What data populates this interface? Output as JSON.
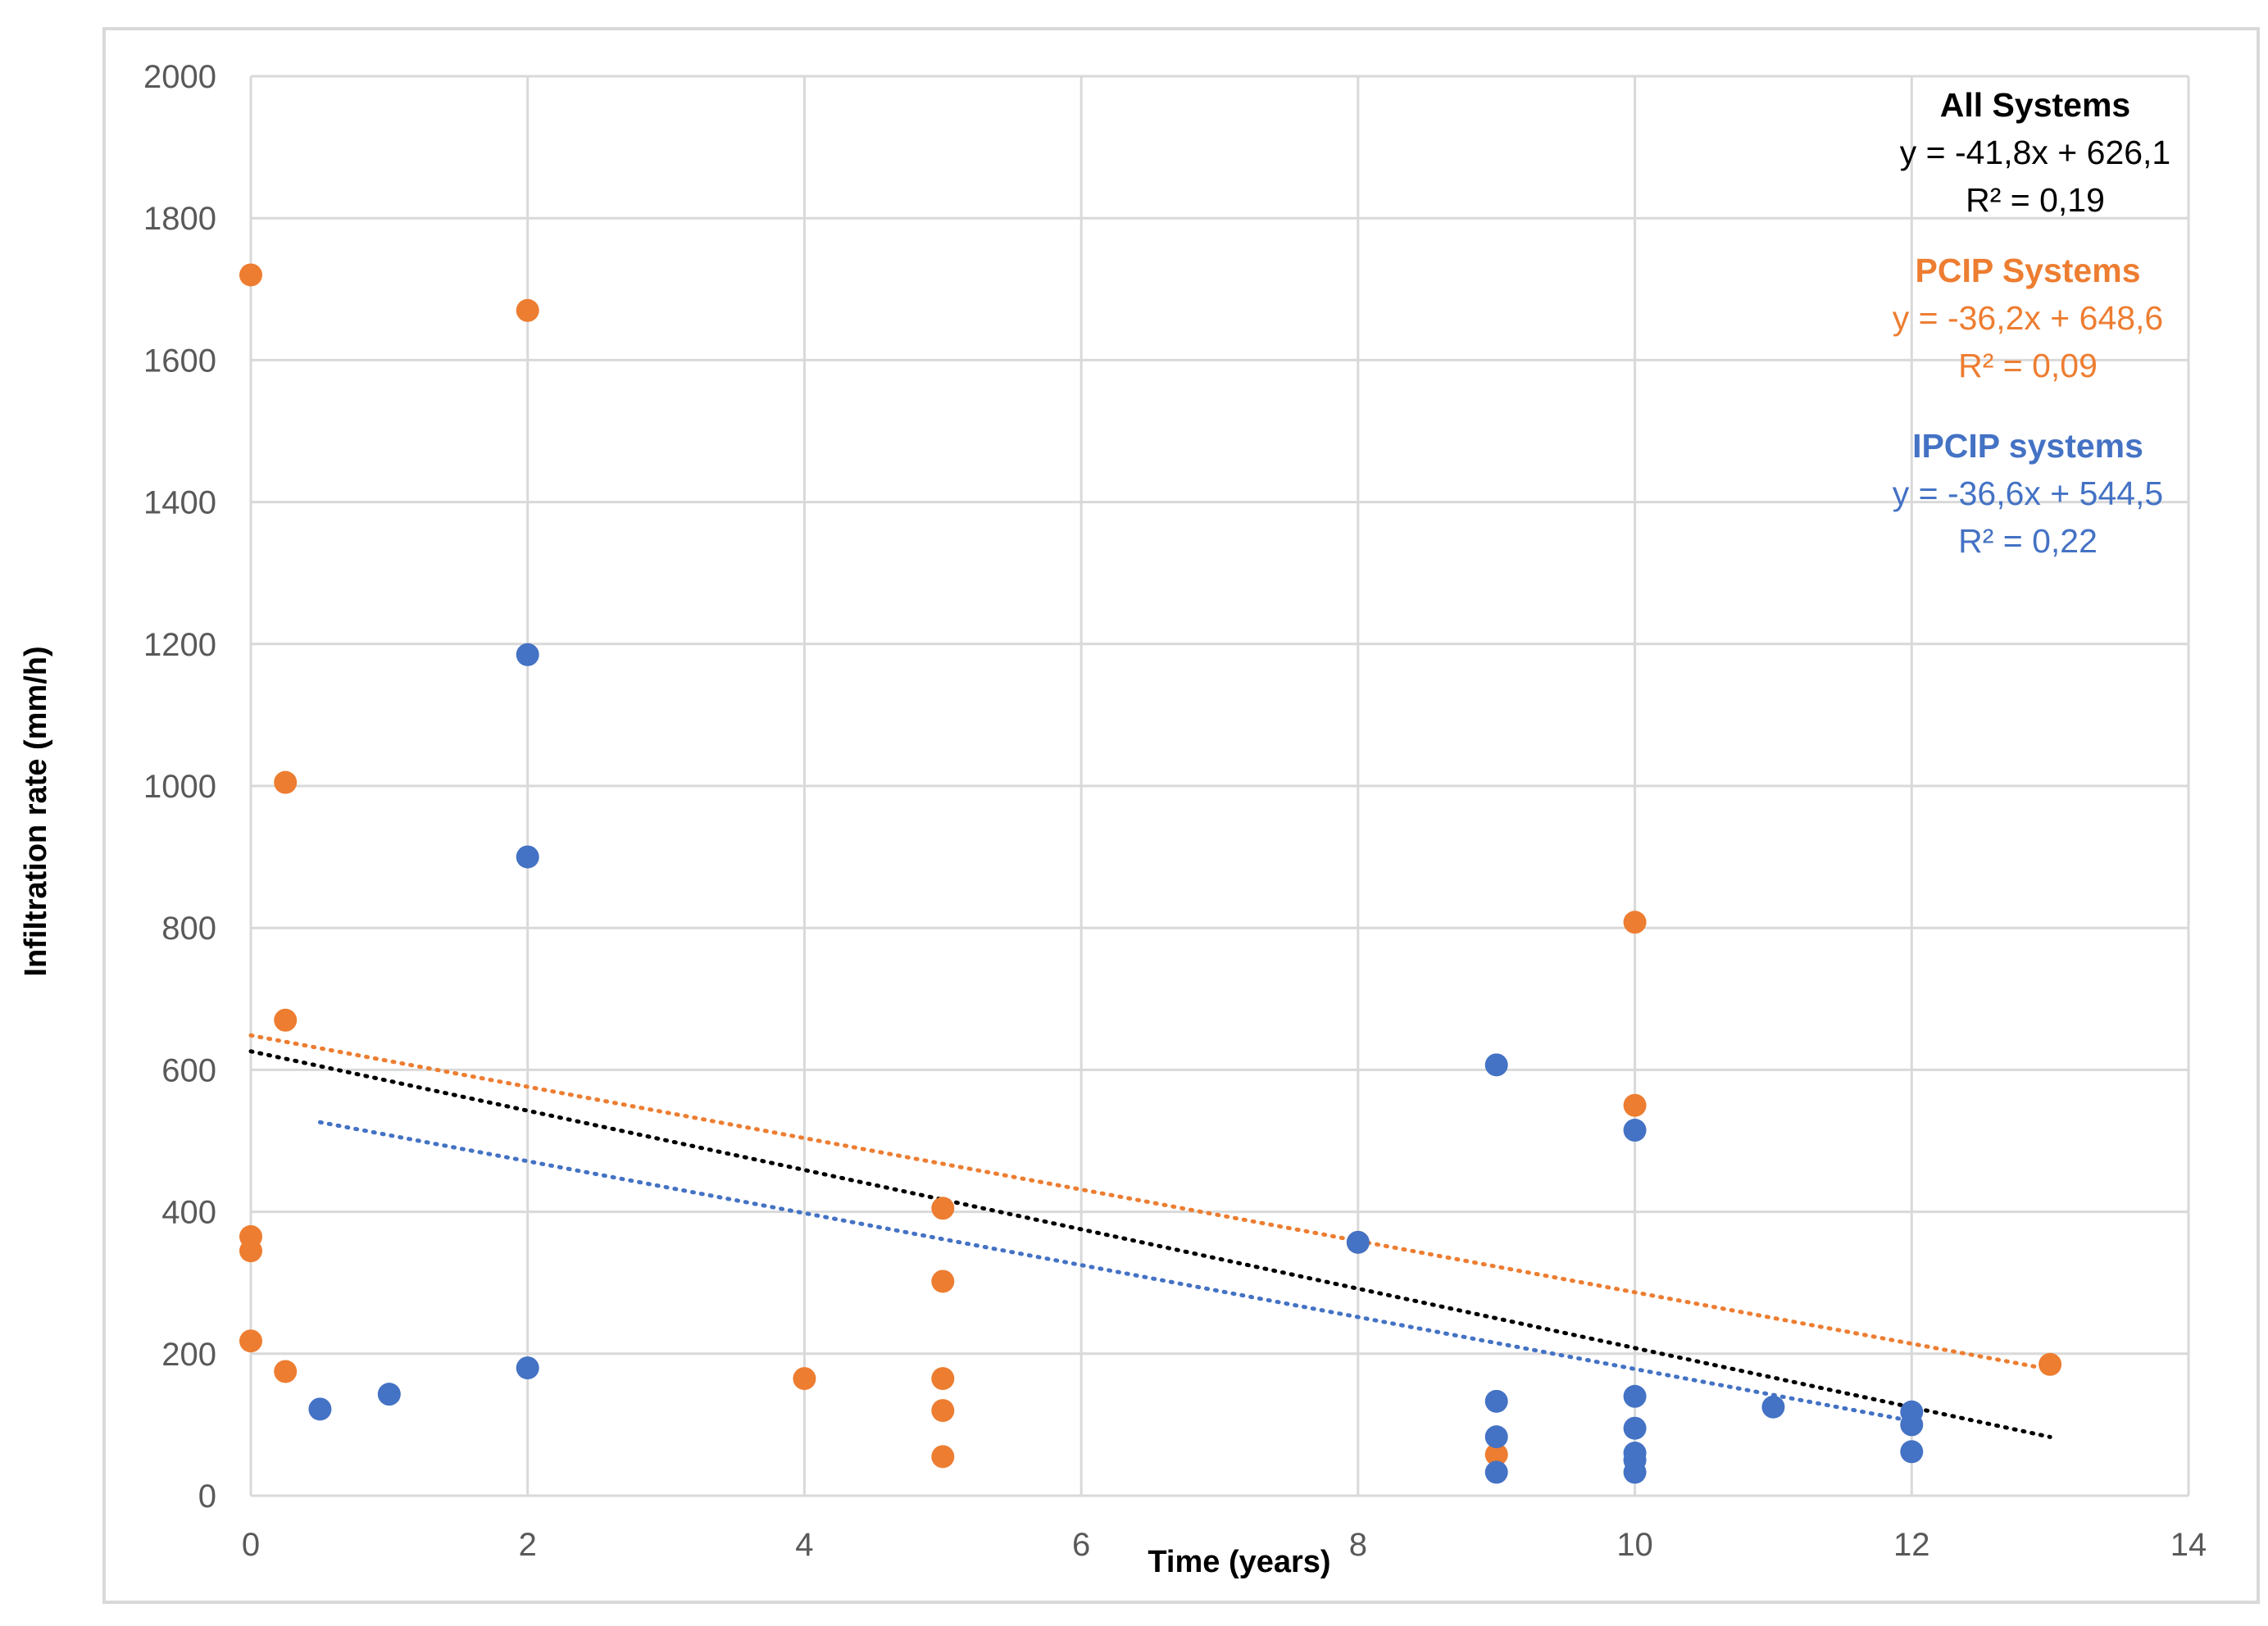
{
  "chart_data": {
    "type": "scatter",
    "title": "",
    "xlabel": "Time (years)",
    "ylabel": "Infiltration rate (mm/h)",
    "xlim": [
      0,
      14
    ],
    "ylim": [
      0,
      2000
    ],
    "xticks": [
      0,
      2,
      4,
      6,
      8,
      10,
      12,
      14
    ],
    "yticks": [
      0,
      200,
      400,
      600,
      800,
      1000,
      1200,
      1400,
      1600,
      1800,
      2000
    ],
    "grid": true,
    "colors": {
      "pcip": "#ED7D31",
      "ipcip": "#4472C4",
      "all": "#000000",
      "grid": "#D9D9D9",
      "border": "#D9D9D9"
    },
    "series": [
      {
        "name": "PCIP Systems",
        "color": "#ED7D31",
        "points": [
          [
            0,
            1720
          ],
          [
            0,
            365
          ],
          [
            0,
            345
          ],
          [
            0,
            218
          ],
          [
            0.25,
            1005
          ],
          [
            0.25,
            670
          ],
          [
            0.25,
            175
          ],
          [
            2,
            1670
          ],
          [
            4,
            165
          ],
          [
            5,
            405
          ],
          [
            5,
            302
          ],
          [
            5,
            165
          ],
          [
            5,
            120
          ],
          [
            5,
            55
          ],
          [
            8,
            357
          ],
          [
            9,
            58
          ],
          [
            10,
            808
          ],
          [
            10,
            550
          ],
          [
            13,
            185
          ]
        ]
      },
      {
        "name": "IPCIP systems",
        "color": "#4472C4",
        "points": [
          [
            0.5,
            122
          ],
          [
            1,
            143
          ],
          [
            2,
            1185
          ],
          [
            2,
            900
          ],
          [
            2,
            180
          ],
          [
            8,
            357
          ],
          [
            9,
            607
          ],
          [
            9,
            133
          ],
          [
            9,
            83
          ],
          [
            9,
            33
          ],
          [
            10,
            515
          ],
          [
            10,
            140
          ],
          [
            10,
            95
          ],
          [
            10,
            60
          ],
          [
            10,
            50
          ],
          [
            10,
            33
          ],
          [
            11,
            125
          ],
          [
            12,
            118
          ],
          [
            12,
            100
          ],
          [
            12,
            62
          ]
        ]
      }
    ],
    "trendlines": [
      {
        "name": "All Systems",
        "color": "#000000",
        "slope": -41.8,
        "intercept": 626.1,
        "x_range": [
          0,
          13
        ]
      },
      {
        "name": "PCIP Systems",
        "color": "#ED7D31",
        "slope": -36.2,
        "intercept": 648.6,
        "x_range": [
          0,
          13
        ]
      },
      {
        "name": "IPCIP systems",
        "color": "#4472C4",
        "slope": -36.6,
        "intercept": 544.5,
        "x_range": [
          0.5,
          12
        ]
      }
    ],
    "annotations": [
      {
        "title": "All Systems",
        "equation": "y = -41,8x + 626,1",
        "r2": "R² = 0,19",
        "color": "#000000"
      },
      {
        "title": "PCIP Systems",
        "equation": "y = -36,2x + 648,6",
        "r2": "R² = 0,09",
        "color": "#ED7D31"
      },
      {
        "title": "IPCIP systems",
        "equation": "y = -36,6x + 544,5",
        "r2": "R² = 0,22",
        "color": "#4472C4"
      }
    ]
  }
}
